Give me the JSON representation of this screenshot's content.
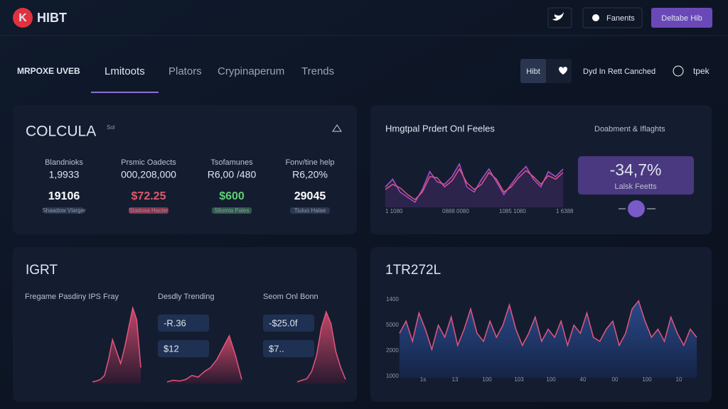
{
  "header": {
    "logo_letter": "K",
    "logo": "HIBT",
    "buttons": [
      "Fanents",
      "Deltabe Hib"
    ]
  },
  "nav": {
    "brand": "MRPOXE UVEB",
    "tabs": [
      "Lmitoots",
      "Plators",
      "Crypinaperum",
      "Trends"
    ],
    "toggle": "Hibt",
    "status": "Dyd In Rett Canched",
    "user": "tpek"
  },
  "panel1": {
    "title": "COLCULA",
    "superscript": "Sol",
    "stats": [
      {
        "label": "Blandnioks",
        "value": "1,9933",
        "amount": "19106",
        "badge": "Shaadow Vlarger"
      },
      {
        "label": "Prsmic Oadects",
        "value": "000,208,000",
        "amount": "$72.25",
        "badge": "Stadosa Hacter"
      },
      {
        "label": "Tsofamunes",
        "value": "R6,00 /480",
        "amount": "$600",
        "badge": "Sltomia Pales"
      },
      {
        "label": "Fonv/tine help",
        "value": "R6,20%",
        "amount": "29045",
        "badge": "Tiuluo Halae"
      }
    ]
  },
  "panel2": {
    "title": "Hmgtpal Prdert Onl Feeles",
    "subtitle": "Doabment & Iflaghts",
    "change": "-34,7%",
    "change_label": "Lalsk Feetts",
    "x_labels": [
      "1 1080",
      "0888 0080",
      "1085 1080",
      "1 6388"
    ],
    "series": [
      {
        "color": "#b04fd0",
        "values": [
          40,
          55,
          30,
          20,
          10,
          35,
          70,
          50,
          45,
          60,
          85,
          40,
          30,
          55,
          75,
          50,
          25,
          45,
          65,
          80,
          55,
          40,
          70,
          60,
          75
        ]
      },
      {
        "color": "#e2557f",
        "values": [
          35,
          45,
          38,
          25,
          15,
          30,
          60,
          58,
          40,
          52,
          75,
          48,
          35,
          45,
          68,
          55,
          30,
          40,
          58,
          72,
          60,
          45,
          62,
          55,
          68
        ]
      }
    ]
  },
  "panel3": {
    "title": "IGRT",
    "columns": [
      {
        "label": "Fregame Pasdiny IPS Fray",
        "values": [
          2,
          3,
          5,
          10,
          30,
          55,
          40,
          25,
          45,
          70,
          95,
          80,
          20
        ]
      },
      {
        "label": "Desdly Trending",
        "pills": [
          "-R.36",
          "$12"
        ],
        "values": [
          2,
          4,
          3,
          5,
          10,
          8,
          15,
          20,
          30,
          45,
          60,
          35,
          5
        ]
      },
      {
        "label": "Seom Onl Bonn",
        "pills": [
          "-$25.0f",
          "$7.."
        ],
        "values": [
          2,
          4,
          6,
          15,
          35,
          70,
          90,
          75,
          40,
          20,
          5
        ]
      }
    ]
  },
  "panel4": {
    "title": "1TR272L",
    "y_labels": [
      "1400",
      "5000",
      "2000",
      "1000"
    ],
    "x_labels": [
      "1s",
      "13",
      "100",
      "103",
      "100",
      "40",
      "00",
      "100",
      "10"
    ],
    "values": [
      55,
      70,
      45,
      80,
      60,
      35,
      65,
      50,
      75,
      40,
      60,
      85,
      55,
      45,
      70,
      50,
      65,
      90,
      60,
      40,
      55,
      75,
      45,
      60,
      50,
      70,
      40,
      65,
      55,
      80,
      50,
      45,
      60,
      70,
      40,
      55,
      85,
      95,
      70,
      50,
      60,
      45,
      75,
      55,
      40,
      60,
      50
    ]
  }
}
